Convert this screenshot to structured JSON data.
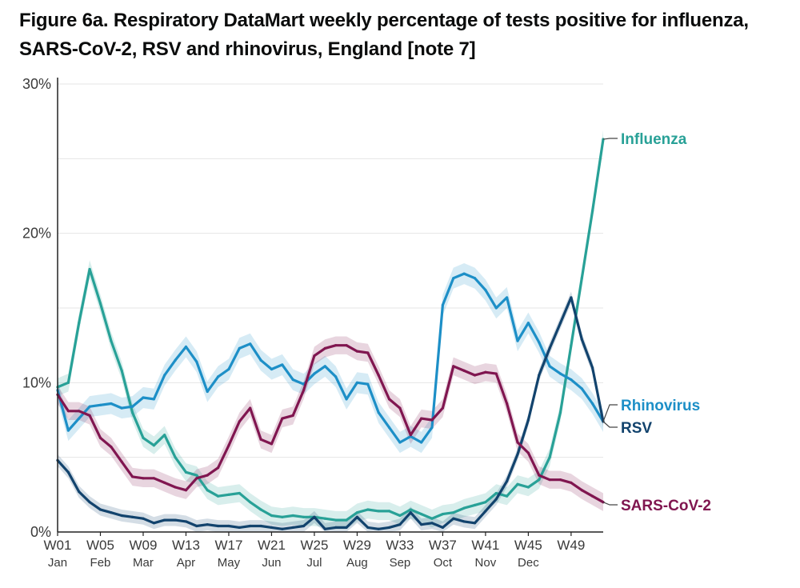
{
  "figure": {
    "title": "Figure 6a. Respiratory DataMart weekly percentage of tests positive for influenza, SARS-CoV-2, RSV and rhinovirus, England [note 7]"
  },
  "chart_data": {
    "type": "line",
    "title": "Figure 6a. Respiratory DataMart weekly percentage of tests positive for influenza, SARS-CoV-2, RSV and rhinovirus, England [note 7]",
    "xlabel": "",
    "ylabel": "",
    "x": [
      1,
      2,
      3,
      4,
      5,
      6,
      7,
      8,
      9,
      10,
      11,
      12,
      13,
      14,
      15,
      16,
      17,
      18,
      19,
      20,
      21,
      22,
      23,
      24,
      25,
      26,
      27,
      28,
      29,
      30,
      31,
      32,
      33,
      34,
      35,
      36,
      37,
      38,
      39,
      40,
      41,
      42,
      43,
      44,
      45,
      46,
      47,
      48,
      49,
      50,
      51,
      52
    ],
    "xlim": [
      1,
      52
    ],
    "ylim": [
      0,
      30
    ],
    "grid": true,
    "y_ticks": [
      0,
      10,
      20,
      30
    ],
    "y_tick_labels": [
      "0%",
      "10%",
      "20%",
      "30%"
    ],
    "x_ticks": [
      {
        "week": 1,
        "label": "W01",
        "month": "Jan"
      },
      {
        "week": 5,
        "label": "W05",
        "month": "Feb"
      },
      {
        "week": 9,
        "label": "W09",
        "month": "Mar"
      },
      {
        "week": 13,
        "label": "W13",
        "month": "Apr"
      },
      {
        "week": 17,
        "label": "W17",
        "month": "May"
      },
      {
        "week": 21,
        "label": "W21",
        "month": "Jun"
      },
      {
        "week": 25,
        "label": "W25",
        "month": "Jul"
      },
      {
        "week": 29,
        "label": "W29",
        "month": "Aug"
      },
      {
        "week": 33,
        "label": "W33",
        "month": "Sep"
      },
      {
        "week": 37,
        "label": "W37",
        "month": "Oct"
      },
      {
        "week": 41,
        "label": "W41",
        "month": "Nov"
      },
      {
        "week": 45,
        "label": "W45",
        "month": "Dec"
      },
      {
        "week": 49,
        "label": "W49",
        "month": ""
      }
    ],
    "series": [
      {
        "name": "Influenza",
        "color": "#28a197",
        "band": 0.6,
        "values": [
          9.7,
          10.0,
          14.0,
          17.6,
          15.3,
          12.8,
          10.8,
          8.0,
          6.3,
          5.8,
          6.5,
          5.0,
          4.0,
          3.8,
          2.8,
          2.4,
          2.5,
          2.6,
          2.0,
          1.5,
          1.1,
          1.0,
          1.1,
          1.0,
          1.0,
          0.9,
          0.8,
          0.8,
          1.3,
          1.5,
          1.4,
          1.4,
          1.1,
          1.5,
          1.2,
          0.9,
          1.2,
          1.3,
          1.6,
          1.8,
          2.0,
          2.6,
          2.4,
          3.2,
          3.0,
          3.5,
          5.0,
          8.0,
          12.5,
          17.0,
          21.5,
          26.3
        ]
      },
      {
        "name": "Rhinovirus",
        "color": "#1d8fc7",
        "band": 0.7,
        "values": [
          9.5,
          6.8,
          7.6,
          8.4,
          8.5,
          8.6,
          8.3,
          8.4,
          9.0,
          8.9,
          10.5,
          11.5,
          12.4,
          11.4,
          9.4,
          10.4,
          10.9,
          12.3,
          12.6,
          11.5,
          10.9,
          11.2,
          10.2,
          9.9,
          10.6,
          11.1,
          10.4,
          8.9,
          10.0,
          9.9,
          8.0,
          7.0,
          6.0,
          6.4,
          6.0,
          7.0,
          15.2,
          17.0,
          17.3,
          17.0,
          16.2,
          15.0,
          15.7,
          12.8,
          14.0,
          12.7,
          11.1,
          10.6,
          10.2,
          9.6,
          8.6,
          7.4
        ]
      },
      {
        "name": "RSV",
        "color": "#12436d",
        "band": 0.4,
        "values": [
          4.8,
          4.0,
          2.7,
          2.0,
          1.5,
          1.3,
          1.1,
          1.0,
          0.9,
          0.6,
          0.8,
          0.8,
          0.7,
          0.4,
          0.5,
          0.4,
          0.4,
          0.3,
          0.4,
          0.4,
          0.3,
          0.2,
          0.3,
          0.4,
          1.0,
          0.2,
          0.3,
          0.3,
          1.0,
          0.3,
          0.2,
          0.3,
          0.5,
          1.3,
          0.5,
          0.6,
          0.3,
          0.9,
          0.7,
          0.6,
          1.4,
          2.2,
          3.4,
          5.2,
          7.5,
          10.5,
          12.3,
          14.0,
          15.7,
          12.9,
          11.0,
          7.4
        ]
      },
      {
        "name": "SARS-CoV-2",
        "color": "#801650",
        "band": 0.6,
        "values": [
          9.2,
          8.1,
          8.1,
          7.8,
          6.3,
          5.7,
          4.7,
          3.7,
          3.6,
          3.6,
          3.3,
          3.0,
          2.8,
          3.6,
          3.8,
          4.3,
          5.8,
          7.4,
          8.3,
          6.2,
          5.9,
          7.6,
          7.8,
          9.5,
          11.8,
          12.3,
          12.5,
          12.5,
          12.1,
          12.0,
          10.5,
          8.9,
          8.3,
          6.5,
          7.6,
          7.5,
          8.3,
          11.1,
          10.8,
          10.5,
          10.7,
          10.6,
          8.6,
          6.0,
          5.3,
          3.8,
          3.5,
          3.5,
          3.3,
          2.8,
          2.4,
          2.0
        ]
      }
    ],
    "labels": [
      {
        "series": "Influenza",
        "text": "Influenza",
        "value": 26.3
      },
      {
        "series": "Rhinovirus",
        "text": "Rhinovirus",
        "value": 7.4
      },
      {
        "series": "RSV",
        "text": "RSV",
        "value": 7.4
      },
      {
        "series": "SARS-CoV-2",
        "text": "SARS-CoV-2",
        "value": 2.0
      }
    ]
  }
}
